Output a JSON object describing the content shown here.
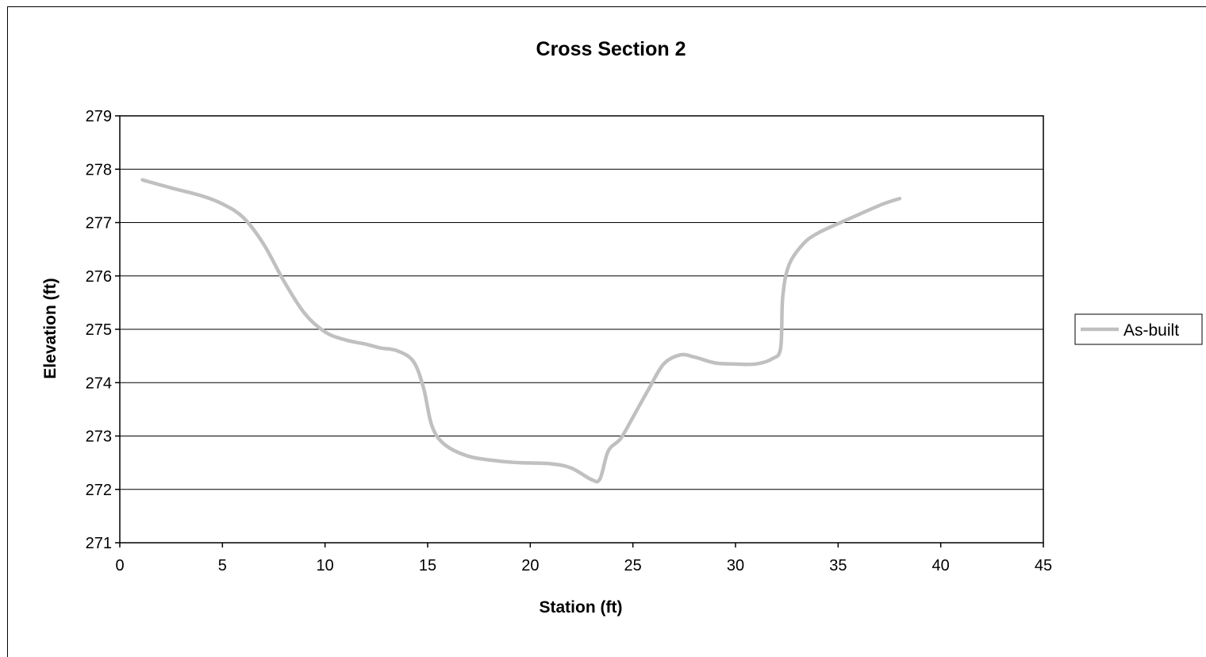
{
  "chart_data": {
    "type": "line",
    "title": "Cross Section 2",
    "xlabel": "Station (ft)",
    "ylabel": "Elevation (ft)",
    "xlim": [
      0,
      45
    ],
    "ylim": [
      271,
      279
    ],
    "xticks": [
      0,
      5,
      10,
      15,
      20,
      25,
      30,
      35,
      40,
      45
    ],
    "yticks": [
      271,
      272,
      273,
      274,
      275,
      276,
      277,
      278,
      279
    ],
    "grid": "horizontal major gridlines",
    "legend_position": "right",
    "series": [
      {
        "name": "As-built",
        "color": "#c0c0c0",
        "smooth": true,
        "points": [
          [
            1.1,
            277.8
          ],
          [
            2.5,
            277.65
          ],
          [
            4.0,
            277.5
          ],
          [
            5.0,
            277.35
          ],
          [
            6.0,
            277.1
          ],
          [
            7.0,
            276.6
          ],
          [
            8.0,
            275.9
          ],
          [
            9.0,
            275.3
          ],
          [
            10.0,
            274.95
          ],
          [
            11.0,
            274.8
          ],
          [
            12.0,
            274.72
          ],
          [
            12.7,
            274.65
          ],
          [
            13.5,
            274.6
          ],
          [
            14.3,
            274.4
          ],
          [
            14.8,
            273.9
          ],
          [
            15.2,
            273.2
          ],
          [
            15.8,
            272.85
          ],
          [
            17.0,
            272.62
          ],
          [
            18.5,
            272.53
          ],
          [
            19.5,
            272.5
          ],
          [
            21.0,
            272.48
          ],
          [
            22.0,
            272.4
          ],
          [
            23.0,
            272.18
          ],
          [
            23.4,
            272.2
          ],
          [
            23.8,
            272.72
          ],
          [
            24.4,
            272.95
          ],
          [
            25.0,
            273.35
          ],
          [
            25.8,
            273.9
          ],
          [
            26.5,
            274.35
          ],
          [
            27.3,
            274.52
          ],
          [
            28.0,
            274.48
          ],
          [
            29.0,
            274.37
          ],
          [
            30.0,
            274.35
          ],
          [
            31.0,
            274.35
          ],
          [
            31.8,
            274.45
          ],
          [
            32.2,
            274.65
          ],
          [
            32.3,
            275.6
          ],
          [
            32.6,
            276.2
          ],
          [
            33.3,
            276.6
          ],
          [
            34.0,
            276.8
          ],
          [
            35.0,
            276.98
          ],
          [
            36.0,
            277.15
          ],
          [
            37.2,
            277.35
          ],
          [
            38.0,
            277.45
          ]
        ]
      }
    ]
  }
}
